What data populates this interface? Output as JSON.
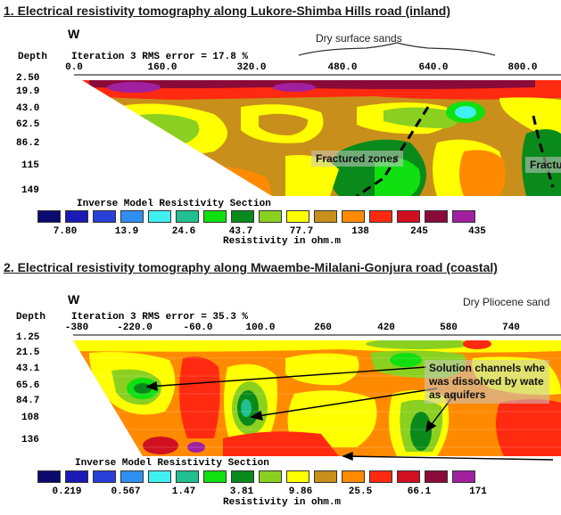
{
  "section1": {
    "title": "1. Electrical resistivity tomography along Lukore-Shimba Hills road (inland)",
    "direction": "W",
    "depth_label": "Depth",
    "iteration_text": "Iteration 3 RMS error = 17.8 %",
    "top_annotation": "Dry surface sands",
    "x_ticks": [
      "0.0",
      "160.0",
      "320.0",
      "480.0",
      "640.0",
      "800.0"
    ],
    "y_ticks": [
      "2.50",
      "19.9",
      "43.0",
      "62.5",
      "86.2",
      "115",
      "149"
    ],
    "box_label_1": "Fractured zones",
    "box_label_2": "Fractu",
    "section_caption": "Inverse Model Resistivity Section",
    "legend_values": [
      "7.80",
      "13.9",
      "24.6",
      "43.7",
      "77.7",
      "138",
      "245",
      "435"
    ],
    "legend_units": "Resistivity in ohm.m"
  },
  "section2": {
    "title": "2. Electrical resistivity tomography along Mwaembe-Milalani-Gonjura road (coastal)",
    "direction": "W",
    "depth_label": "Depth",
    "iteration_text": "Iteration 3 RMS error = 35.3 %",
    "top_annotation": "Dry Pliocene sand",
    "x_ticks": [
      "-380",
      "-220.0",
      "-60.0",
      "100.0",
      "260",
      "420",
      "580",
      "740"
    ],
    "y_ticks": [
      "1.25",
      "21.5",
      "43.1",
      "65.6",
      "84.7",
      "108",
      "136"
    ],
    "box_label": "Solution channels whe\nwas dissolved by wate\nas aquifers",
    "section_caption": "Inverse Model Resistivity Section",
    "legend_values": [
      "0.219",
      "0.567",
      "1.47",
      "3.81",
      "9.86",
      "25.5",
      "66.1",
      "171"
    ],
    "legend_units": "Resistivity in ohm.m"
  },
  "colors": {
    "scale": [
      "#0b0b6e",
      "#1a1ab4",
      "#2a3fd6",
      "#2f8ff0",
      "#40f0f0",
      "#20c090",
      "#10e010",
      "#0a8a1a",
      "#8ad020",
      "#ffff00",
      "#c8901a",
      "#ff8a00",
      "#ff2a10",
      "#d01020",
      "#8a0a3a",
      "#a020a0"
    ]
  }
}
